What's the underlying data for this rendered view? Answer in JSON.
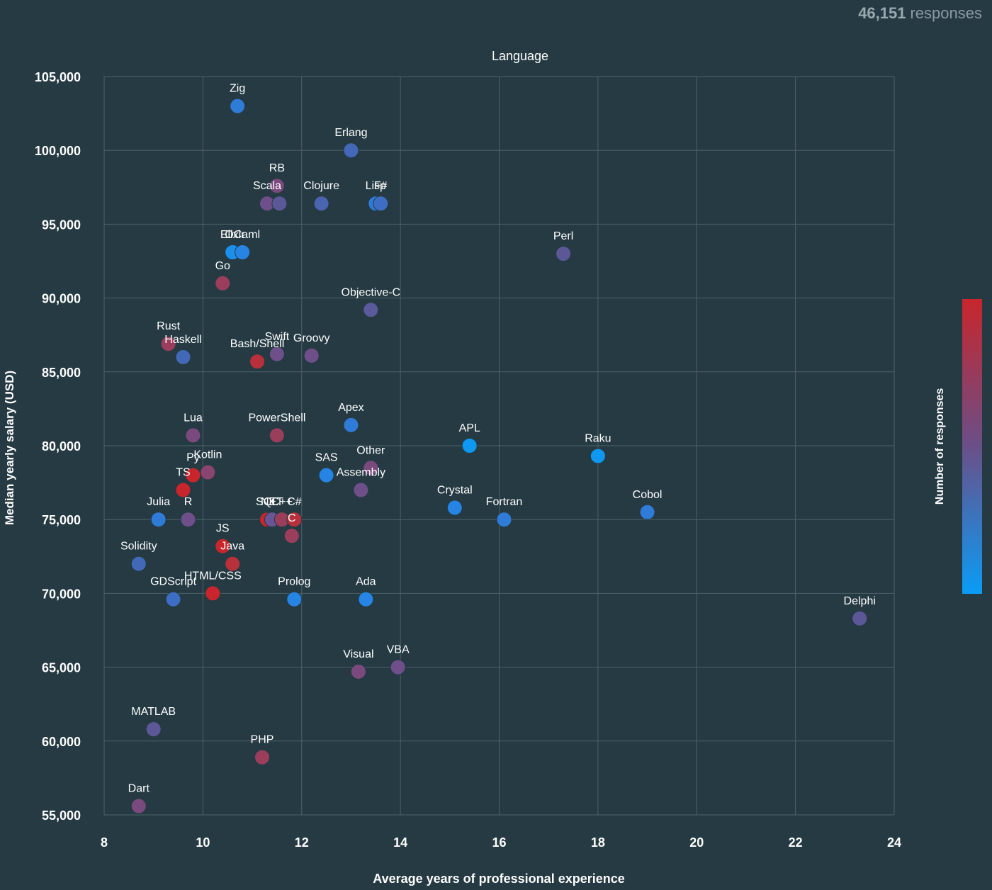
{
  "header": {
    "responses_count": "46,151",
    "responses_word": "responses"
  },
  "chart_data": {
    "type": "scatter",
    "title": "Language",
    "xlabel": "Average years of professional experience",
    "ylabel": "Median yearly salary (USD)",
    "xlim": [
      8,
      24
    ],
    "ylim": [
      55000,
      105000
    ],
    "x_ticks": [
      8,
      10,
      12,
      14,
      16,
      18,
      20,
      22,
      24
    ],
    "y_ticks": [
      55000,
      60000,
      65000,
      70000,
      75000,
      80000,
      85000,
      90000,
      95000,
      100000,
      105000
    ],
    "x_tick_labels": [
      "8",
      "10",
      "12",
      "14",
      "16",
      "18",
      "20",
      "22",
      "24"
    ],
    "y_tick_labels": [
      "55,000",
      "60,000",
      "65,000",
      "70,000",
      "75,000",
      "80,000",
      "85,000",
      "90,000",
      "95,000",
      "100,000",
      "105,000"
    ],
    "grid": true,
    "colorbar": {
      "label": "Number of responses",
      "high_color": "#c8262c",
      "mid_color": "#6a4f88",
      "low_color": "#0a9cf5",
      "placement": "right"
    },
    "points": [
      {
        "label": "Zig",
        "x": 10.7,
        "y": 103000,
        "color": "#2f7bd8"
      },
      {
        "label": "Erlang",
        "x": 13.0,
        "y": 100000,
        "color": "#4468b8"
      },
      {
        "label": "RB",
        "x": 11.5,
        "y": 97600,
        "color": "#7a4a7e"
      },
      {
        "label": "Scala",
        "x": 11.3,
        "y": 96400,
        "color": "#6e4f8a"
      },
      {
        "label": "",
        "x": 11.55,
        "y": 96400,
        "color": "#5c5898"
      },
      {
        "label": "Clojure",
        "x": 12.4,
        "y": 96400,
        "color": "#4a64b0"
      },
      {
        "label": "Lisp",
        "x": 13.5,
        "y": 96400,
        "color": "#2f7bd8"
      },
      {
        "label": "F#",
        "x": 13.6,
        "y": 96400,
        "color": "#3e6ec4"
      },
      {
        "label": "Elixir",
        "x": 10.6,
        "y": 93100,
        "color": "#1a8fec"
      },
      {
        "label": "OCaml",
        "x": 10.8,
        "y": 93100,
        "color": "#2584e4"
      },
      {
        "label": "Perl",
        "x": 17.3,
        "y": 93000,
        "color": "#5c5898"
      },
      {
        "label": "Go",
        "x": 10.4,
        "y": 91000,
        "color": "#9a3e5c"
      },
      {
        "label": "Objective-C",
        "x": 13.4,
        "y": 89200,
        "color": "#5a5a9c"
      },
      {
        "label": "Rust",
        "x": 9.3,
        "y": 86900,
        "color": "#9a3e5c"
      },
      {
        "label": "Haskell",
        "x": 9.6,
        "y": 86000,
        "color": "#4468b8"
      },
      {
        "label": "Swift",
        "x": 11.5,
        "y": 86200,
        "color": "#6e4f8a"
      },
      {
        "label": "Groovy",
        "x": 12.2,
        "y": 86100,
        "color": "#6e4f8a"
      },
      {
        "label": "Bash/Shell",
        "x": 11.1,
        "y": 85700,
        "color": "#b8303c"
      },
      {
        "label": "Apex",
        "x": 13.0,
        "y": 81400,
        "color": "#2f7bd8"
      },
      {
        "label": "Lua",
        "x": 9.8,
        "y": 80700,
        "color": "#7a4a7e"
      },
      {
        "label": "PowerShell",
        "x": 11.5,
        "y": 80700,
        "color": "#9a3e5c"
      },
      {
        "label": "APL",
        "x": 15.4,
        "y": 80000,
        "color": "#0e98f2"
      },
      {
        "label": "Raku",
        "x": 18.0,
        "y": 79300,
        "color": "#0e98f2"
      },
      {
        "label": "Other",
        "x": 13.4,
        "y": 78500,
        "color": "#7a4a7e"
      },
      {
        "label": "Py",
        "x": 9.8,
        "y": 78000,
        "color": "#c8262c"
      },
      {
        "label": "Kotlin",
        "x": 10.1,
        "y": 78200,
        "color": "#8a4470"
      },
      {
        "label": "SAS",
        "x": 12.5,
        "y": 78000,
        "color": "#2584e4"
      },
      {
        "label": "TS",
        "x": 9.6,
        "y": 77000,
        "color": "#c8262c"
      },
      {
        "label": "Assembly",
        "x": 13.2,
        "y": 77000,
        "color": "#6e4f8a"
      },
      {
        "label": "Crystal",
        "x": 15.1,
        "y": 75800,
        "color": "#2584e4"
      },
      {
        "label": "Fortran",
        "x": 16.1,
        "y": 75000,
        "color": "#2f7bd8"
      },
      {
        "label": "Cobol",
        "x": 19.0,
        "y": 75500,
        "color": "#2f7bd8"
      },
      {
        "label": "Julia",
        "x": 9.1,
        "y": 75000,
        "color": "#2f7bd8"
      },
      {
        "label": "R",
        "x": 9.7,
        "y": 75000,
        "color": "#6e4f8a"
      },
      {
        "label": "SQL",
        "x": 11.3,
        "y": 75000,
        "color": "#c8262c"
      },
      {
        "label": "NET",
        "x": 11.4,
        "y": 75000,
        "color": "#6a5498"
      },
      {
        "label": "C++",
        "x": 11.6,
        "y": 75000,
        "color": "#9a3e5c"
      },
      {
        "label": "C#",
        "x": 11.85,
        "y": 75000,
        "color": "#b8303c"
      },
      {
        "label": "C",
        "x": 11.8,
        "y": 73900,
        "color": "#9a3e5c"
      },
      {
        "label": "JS",
        "x": 10.4,
        "y": 73200,
        "color": "#c8262c"
      },
      {
        "label": "Java",
        "x": 10.6,
        "y": 72000,
        "color": "#b8303c"
      },
      {
        "label": "Solidity",
        "x": 8.7,
        "y": 72000,
        "color": "#4468b8"
      },
      {
        "label": "HTML/CSS",
        "x": 10.2,
        "y": 70000,
        "color": "#c8262c"
      },
      {
        "label": "GDScript",
        "x": 9.4,
        "y": 69600,
        "color": "#3e6ec4"
      },
      {
        "label": "Prolog",
        "x": 11.85,
        "y": 69600,
        "color": "#2584e4"
      },
      {
        "label": "Ada",
        "x": 13.3,
        "y": 69600,
        "color": "#2584e4"
      },
      {
        "label": "Delphi",
        "x": 23.3,
        "y": 68300,
        "color": "#5c5898"
      },
      {
        "label": "VBA",
        "x": 13.95,
        "y": 65000,
        "color": "#6e4f8a"
      },
      {
        "label": "Visual",
        "x": 13.15,
        "y": 64700,
        "color": "#7a4a7e"
      },
      {
        "label": "MATLAB",
        "x": 9.0,
        "y": 60800,
        "color": "#5c5898"
      },
      {
        "label": "PHP",
        "x": 11.2,
        "y": 58900,
        "color": "#9a3e5c"
      },
      {
        "label": "Dart",
        "x": 8.7,
        "y": 55600,
        "color": "#7a4a7e"
      }
    ]
  }
}
